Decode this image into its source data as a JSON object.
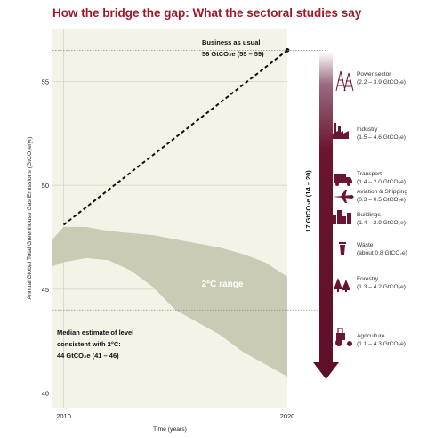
{
  "title": "How the bridge the gap: What the sectoral studies say",
  "chart_data": {
    "type": "area",
    "xlabel": "Time (years)",
    "ylabel": "Annual Global Total Greenhouse Gas Emissions (GtCO₂e/yr)",
    "xlim": [
      2009.5,
      2020
    ],
    "ylim": [
      39.3,
      57.5
    ],
    "x_ticks": [
      "2010",
      "2020"
    ],
    "y_ticks": [
      40,
      45,
      50,
      55
    ],
    "band": {
      "name": "2°C range",
      "x": [
        2009.5,
        2010,
        2011,
        2012,
        2013,
        2014,
        2015,
        2016,
        2017,
        2018,
        2019,
        2020
      ],
      "upper": [
        47.4,
        48.0,
        48.0,
        47.8,
        47.7,
        47.6,
        47.4,
        47.2,
        47.0,
        46.7,
        46.3,
        45.6
      ],
      "lower": [
        46.1,
        46.3,
        46.5,
        46.4,
        45.9,
        45.1,
        44.0,
        43.4,
        42.8,
        42.0,
        41.4,
        40.8
      ]
    },
    "bau_line": {
      "x": [
        2010,
        2020
      ],
      "y": [
        48.1,
        56.5
      ]
    },
    "bau_label": "Business as usual",
    "bau_value": "56 GtCO₂e (55 – 59)",
    "median_line_y": 44,
    "median_label_1": "Median estimate of level",
    "median_label_2": "consistent with 2°C:",
    "median_value": "44 GtCO₂e (41 – 46)",
    "gap_label": "17 GtCO₂e (14 – 20)",
    "sectors": [
      {
        "name": "Power sector",
        "range": "(2.2 – 3.9 GtCO₂e)",
        "icon": "power-pylon-icon"
      },
      {
        "name": "Industry",
        "range": "(1.5 – 4.6 GtCO₂e)",
        "icon": "factory-icon"
      },
      {
        "name": "Transport",
        "range": "(1.4 – 2.0 GtCO₂e)",
        "icon": "truck-icon"
      },
      {
        "name": "Aviation & Shipping",
        "range": "(0.3 – 0.5 GtCO₂e)",
        "icon": "airplane-icon"
      },
      {
        "name": "Buildings",
        "range": "(1.4 – 2.9 GtCO₂e)",
        "icon": "buildings-icon"
      },
      {
        "name": "Waste",
        "range": "(about 0.8 GtCO₂e)",
        "icon": "waste-bin-icon"
      },
      {
        "name": "Forestry",
        "range": "(1.3 – 4.2 GtCO₂e)",
        "icon": "trees-icon"
      },
      {
        "name": "Agriculture",
        "range": "(1.1 – 4.3 GtCO₂e)",
        "icon": "tractor-icon"
      }
    ],
    "colors": {
      "title": "#a2182b",
      "band": "#c9cbb4",
      "plot_bg": "#f4f3e8",
      "arrow": "#6b1530"
    }
  }
}
